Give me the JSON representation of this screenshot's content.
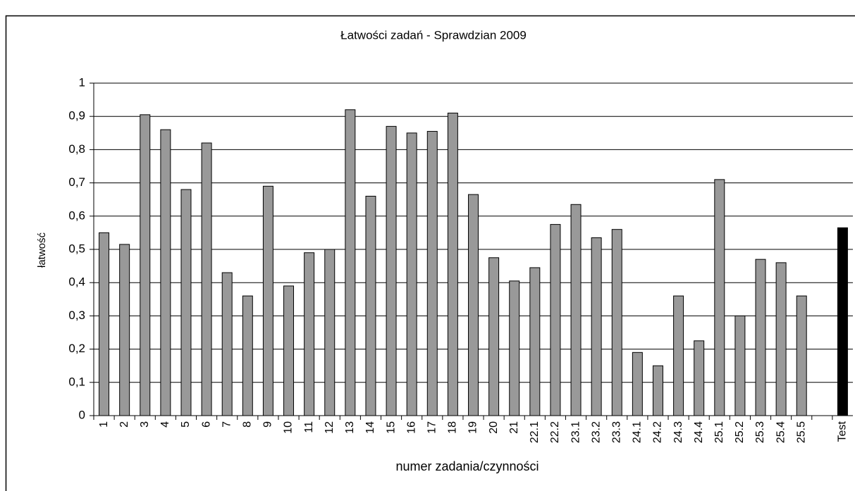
{
  "chart_data": {
    "type": "bar",
    "title": "Łatwości zadań - Sprawdzian 2009",
    "x_label": "numer zadania/czynności",
    "y_label": "łatwość",
    "categories": [
      "1",
      "2",
      "3",
      "4",
      "5",
      "6",
      "7",
      "8",
      "9",
      "10",
      "11",
      "12",
      "13",
      "14",
      "15",
      "16",
      "17",
      "18",
      "19",
      "20",
      "21",
      "22.1",
      "22.2",
      "23.1",
      "23.2",
      "23.3",
      "24.1",
      "24.2",
      "24.3",
      "24.4",
      "25.1",
      "25.2",
      "25.3",
      "25.4",
      "25.5",
      null,
      "Test"
    ],
    "values": [
      0.55,
      0.515,
      0.905,
      0.86,
      0.68,
      0.82,
      0.43,
      0.36,
      0.69,
      0.39,
      0.49,
      0.5,
      0.92,
      0.66,
      0.87,
      0.85,
      0.855,
      0.91,
      0.665,
      0.475,
      0.405,
      0.445,
      0.575,
      0.635,
      0.535,
      0.56,
      0.19,
      0.15,
      0.36,
      0.225,
      0.71,
      0.3,
      0.47,
      0.46,
      0.36,
      null,
      0.565
    ],
    "colors": [
      "#999999",
      "#999999",
      "#999999",
      "#999999",
      "#999999",
      "#999999",
      "#999999",
      "#999999",
      "#999999",
      "#999999",
      "#999999",
      "#999999",
      "#999999",
      "#999999",
      "#999999",
      "#999999",
      "#999999",
      "#999999",
      "#999999",
      "#999999",
      "#999999",
      "#999999",
      "#999999",
      "#999999",
      "#999999",
      "#999999",
      "#999999",
      "#999999",
      "#999999",
      "#999999",
      "#999999",
      "#999999",
      "#999999",
      "#999999",
      "#999999",
      "#999999",
      "#000000"
    ],
    "ylim": [
      0,
      1
    ],
    "yticks": [
      0,
      {
        "value": 0.1,
        "label": "0,1"
      },
      {
        "value": 0.2,
        "label": "0,2"
      },
      {
        "value": 0.3,
        "label": "0,3"
      },
      {
        "value": 0.4,
        "label": "0,4"
      },
      {
        "value": 0.5,
        "label": "0,5"
      },
      {
        "value": 0.6,
        "label": "0,6"
      },
      {
        "value": 0.7,
        "label": "0,7"
      },
      {
        "value": 0.8,
        "label": "0,8"
      },
      {
        "value": 0.9,
        "label": "0,9"
      },
      1
    ],
    "grid": true
  }
}
